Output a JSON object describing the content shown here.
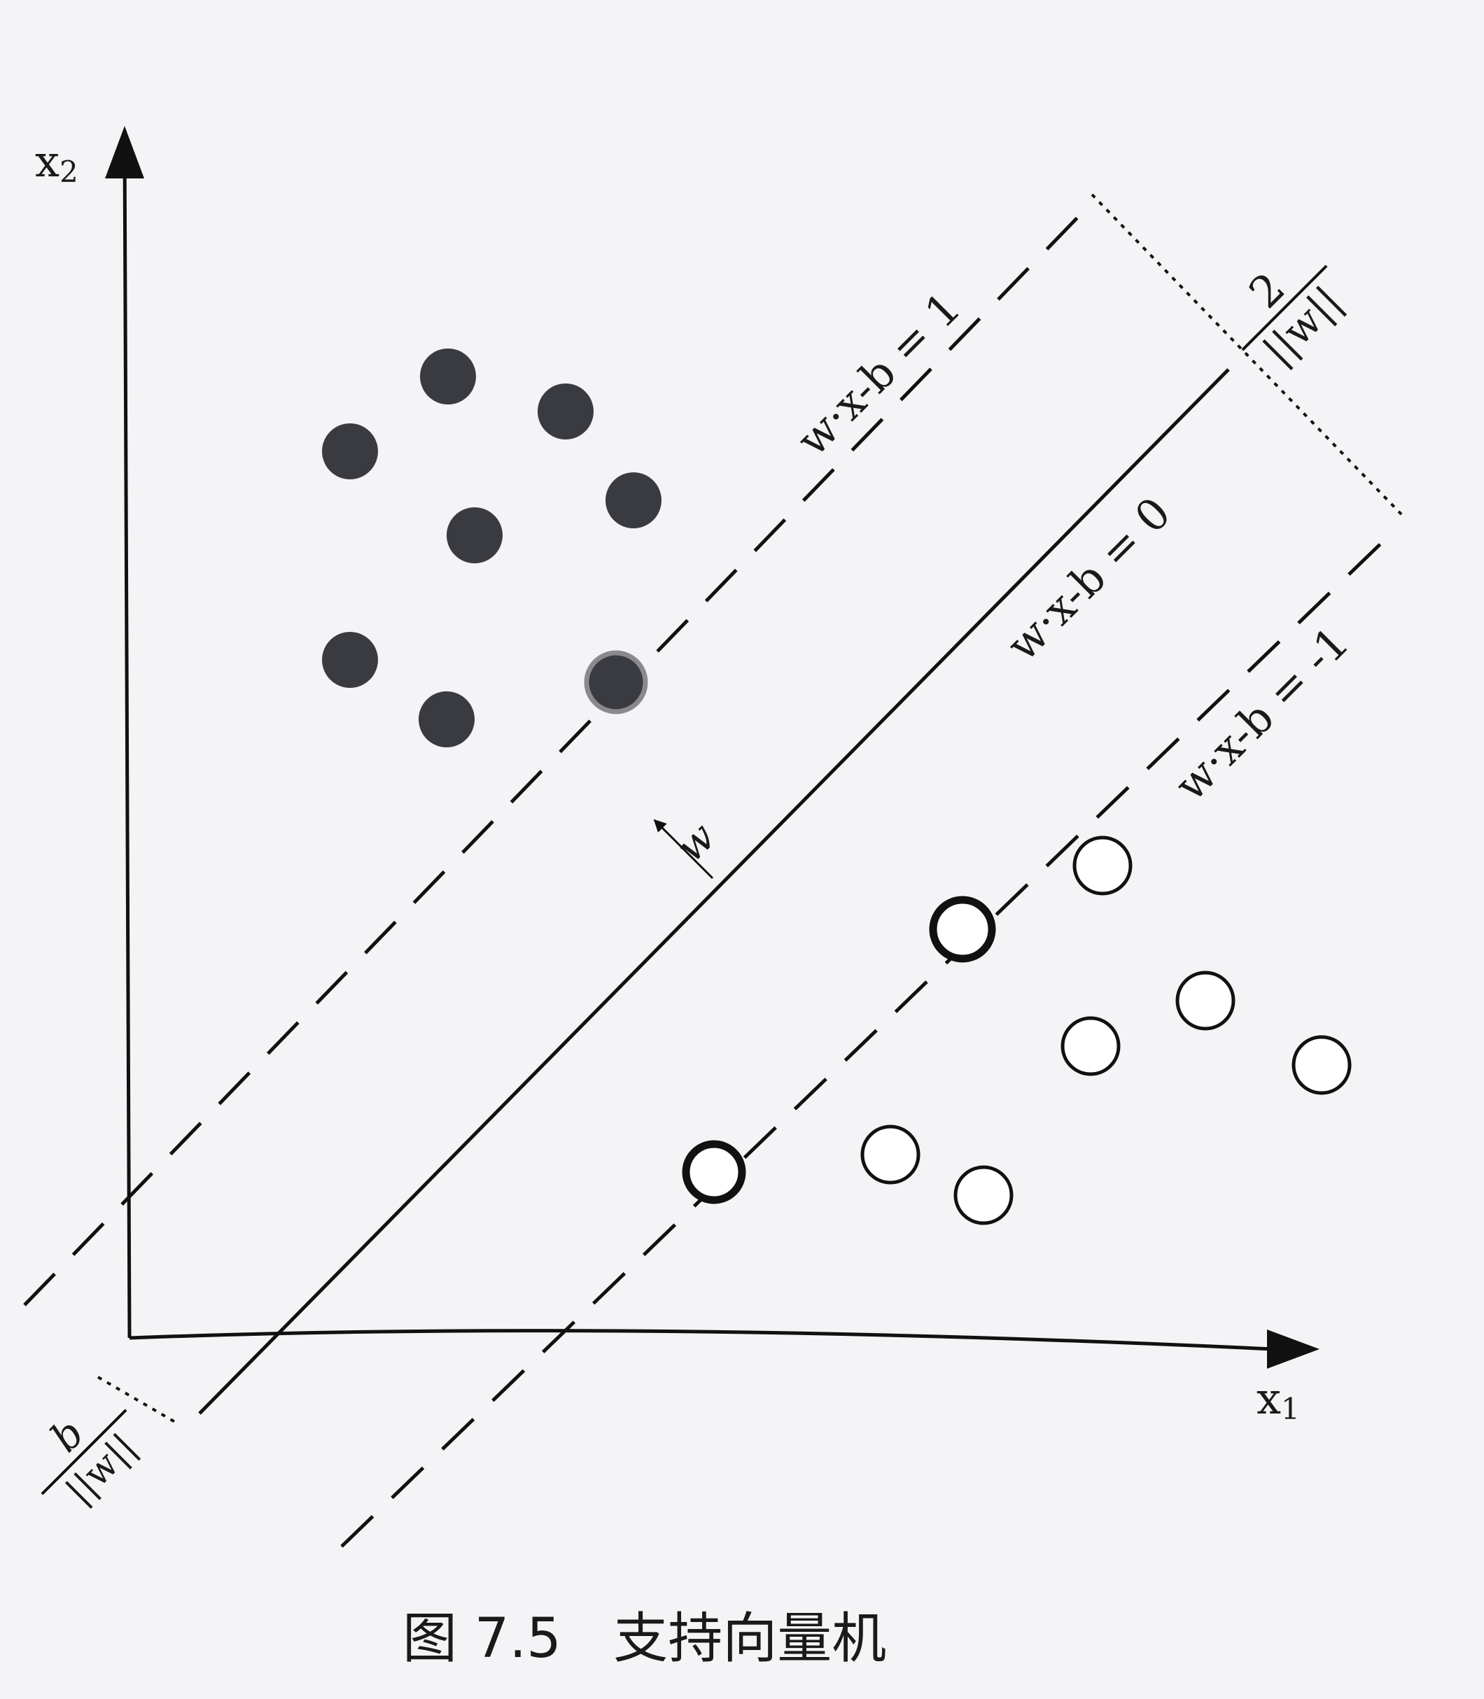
{
  "figure": {
    "caption": "图 7.5   支持向量机",
    "axes": {
      "x_label": "x",
      "x_sub": "1",
      "y_label": "x",
      "y_sub": "2"
    },
    "hyperplanes": {
      "upper": "w·x-b = 1",
      "middle": "w·x-b = 0",
      "lower": "w·x-b = -1"
    },
    "normal_vector_label": "w",
    "margin_label": {
      "numerator": "2",
      "denominator": "||w||"
    },
    "offset_label": {
      "numerator": "b",
      "denominator": "||w||"
    },
    "classes": {
      "positive_color": "#3a3b40",
      "negative_color": "#ffffff",
      "line_color": "#111111"
    }
  }
}
